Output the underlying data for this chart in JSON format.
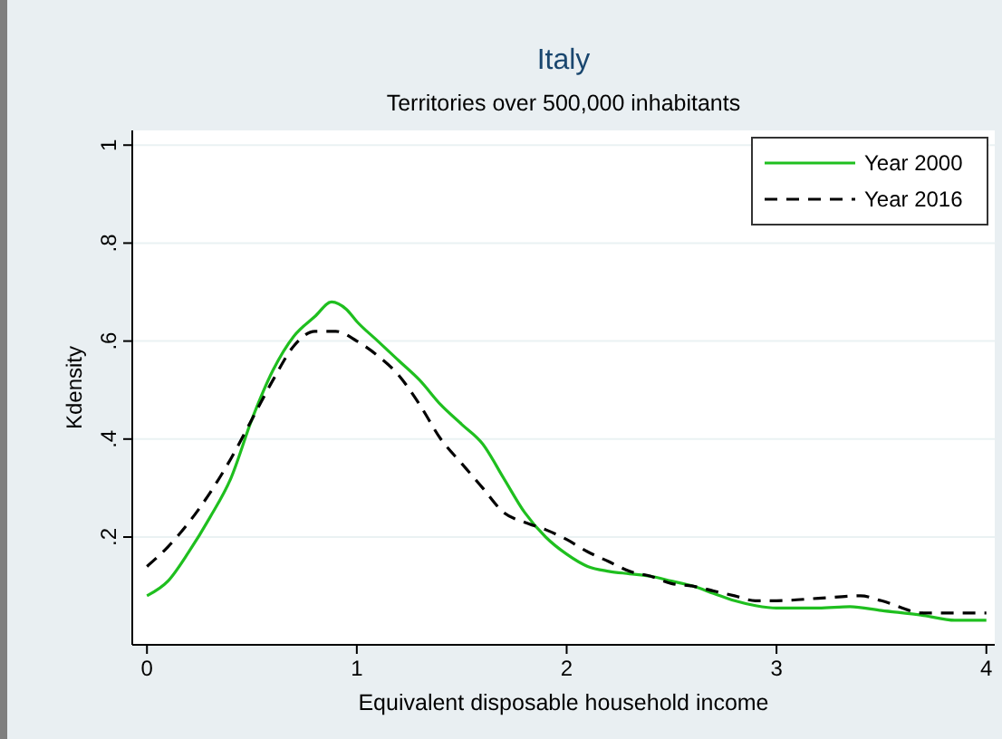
{
  "chart_data": {
    "type": "line",
    "title": "Italy",
    "subtitle": "Territories over 500,000 inhabitants",
    "xlabel": "Equivalent disposable household income",
    "ylabel": "Kdensity",
    "xlim": [
      -0.07,
      4.04
    ],
    "ylim": [
      -0.02,
      1.03
    ],
    "xticks": [
      0,
      1,
      2,
      3,
      4
    ],
    "yticks": [
      {
        "value": 0.2,
        "label": ".2"
      },
      {
        "value": 0.4,
        "label": ".4"
      },
      {
        "value": 0.6,
        "label": ".6"
      },
      {
        "value": 0.8,
        "label": ".8"
      },
      1
    ],
    "grid": "y",
    "legend": "top right",
    "series": [
      {
        "name": "Year 2000",
        "color": "#1fbf1f",
        "line_style": "solid",
        "x": [
          0,
          0.1,
          0.2,
          0.3,
          0.4,
          0.5,
          0.6,
          0.7,
          0.8,
          0.88,
          0.95,
          1.0,
          1.1,
          1.2,
          1.3,
          1.4,
          1.5,
          1.6,
          1.7,
          1.8,
          1.9,
          2.0,
          2.1,
          2.2,
          2.3,
          2.4,
          2.5,
          2.6,
          2.7,
          2.8,
          2.9,
          3.0,
          3.2,
          3.35,
          3.5,
          3.7,
          3.85,
          4.0
        ],
        "values": [
          0.08,
          0.11,
          0.17,
          0.24,
          0.32,
          0.44,
          0.54,
          0.61,
          0.65,
          0.68,
          0.665,
          0.64,
          0.6,
          0.56,
          0.52,
          0.47,
          0.43,
          0.39,
          0.32,
          0.25,
          0.2,
          0.165,
          0.14,
          0.13,
          0.125,
          0.12,
          0.11,
          0.1,
          0.085,
          0.07,
          0.06,
          0.055,
          0.055,
          0.058,
          0.05,
          0.04,
          0.03,
          0.03
        ]
      },
      {
        "name": "Year 2016",
        "color": "#000000",
        "line_style": "dashed",
        "x": [
          0,
          0.1,
          0.2,
          0.3,
          0.4,
          0.5,
          0.6,
          0.7,
          0.8,
          0.9,
          1.0,
          1.1,
          1.2,
          1.3,
          1.4,
          1.5,
          1.6,
          1.7,
          1.8,
          1.9,
          2.0,
          2.1,
          2.2,
          2.3,
          2.4,
          2.5,
          2.6,
          2.7,
          2.8,
          2.9,
          3.0,
          3.2,
          3.4,
          3.5,
          3.7,
          4.0
        ],
        "values": [
          0.14,
          0.18,
          0.23,
          0.29,
          0.36,
          0.44,
          0.52,
          0.59,
          0.62,
          0.62,
          0.6,
          0.57,
          0.53,
          0.47,
          0.4,
          0.35,
          0.3,
          0.25,
          0.23,
          0.215,
          0.195,
          0.17,
          0.15,
          0.13,
          0.12,
          0.105,
          0.1,
          0.09,
          0.08,
          0.07,
          0.07,
          0.075,
          0.08,
          0.07,
          0.045,
          0.045
        ]
      }
    ]
  }
}
